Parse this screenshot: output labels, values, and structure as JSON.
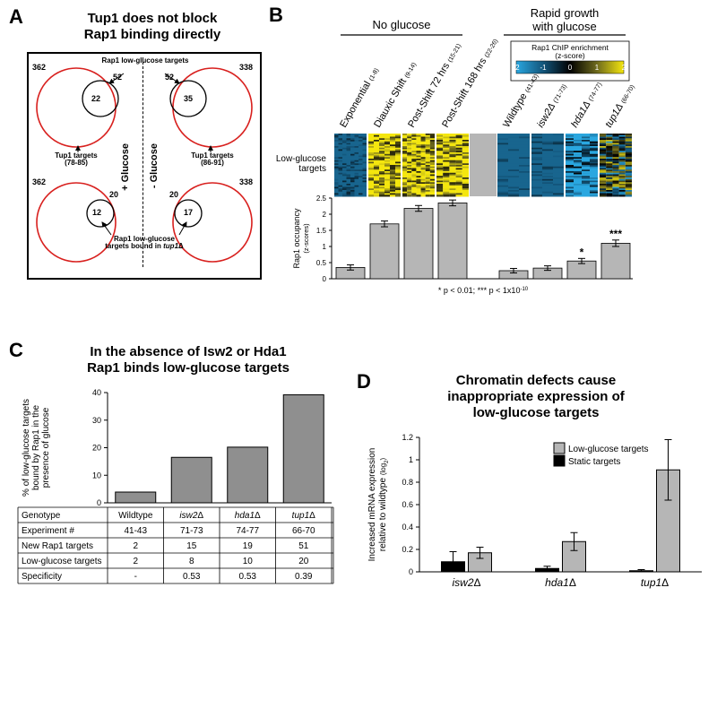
{
  "panelA": {
    "label": "A",
    "title_line1": "Tup1 does not block",
    "title_line2": "Rap1 binding directly",
    "glucose_plus": "+ Glucose",
    "glucose_minus": "- Glucose",
    "top_inner_label": "Rap1 low-glucose targets",
    "bottom_inner_label_line1": "Rap1 low-glucose",
    "bottom_inner_label_line2": "targets bound in tup1Δ",
    "tup1_label_line1": "Tup1 targets",
    "tup1_label_plus": "(78-85)",
    "tup1_label_minus": "(86-91)",
    "cells": {
      "top_left": {
        "big_outer": "362",
        "inner_total": "52",
        "overlap": "22"
      },
      "top_right": {
        "big_outer": "338",
        "inner_total": "52",
        "overlap": "35"
      },
      "bot_left": {
        "big_outer": "362",
        "inner_total": "20",
        "overlap": "12"
      },
      "bot_right": {
        "big_outer": "338",
        "inner_total": "20",
        "overlap": "17"
      }
    },
    "big_circle_color": "#d8201e",
    "small_circle_color": "#000000"
  },
  "panelB": {
    "label": "B",
    "header_no_glucose": "No glucose",
    "header_rapid": "Rapid growth",
    "header_rapid2": "with glucose",
    "columns": [
      {
        "name": "Exponential",
        "range": "(1-8)",
        "n": 8,
        "mean": 0.35,
        "err": 0.08
      },
      {
        "name": "Diauxic Shift",
        "range": "(9-14)",
        "n": 6,
        "mean": 1.7,
        "err": 0.09
      },
      {
        "name": "Post-Shift 72 hrs",
        "range": "(15-21)",
        "n": 7,
        "mean": 2.18,
        "err": 0.09
      },
      {
        "name": "Post-Shift 168 hrs",
        "range": "(22-26)",
        "n": 5,
        "mean": 2.35,
        "err": 0.09
      },
      {
        "name": "Wildtype",
        "range": "(41-43)",
        "n": 3,
        "mean": 0.25,
        "err": 0.07,
        "gap_before": true
      },
      {
        "name": "isw2Δ",
        "range": "(71-73)",
        "n": 3,
        "mean": 0.33,
        "err": 0.07,
        "italic": true
      },
      {
        "name": "hda1Δ",
        "range": "(74-77)",
        "n": 4,
        "mean": 0.55,
        "err": 0.08,
        "italic": true,
        "sig": "*"
      },
      {
        "name": "tup1Δ",
        "range": "(66-70)",
        "n": 5,
        "mean": 1.1,
        "err": 0.1,
        "italic": true,
        "sig": "***"
      }
    ],
    "heat_side_label": "Low-glucose\ntargets",
    "y_axis_label": "Rap1 occupancy\n(z-scores)",
    "y_ticks": [
      0,
      0.5,
      1.0,
      1.5,
      2.0,
      2.5
    ],
    "sig_note": "* p < 0.01; *** p < 1x10",
    "sig_note_sup": "-10",
    "legend_title": "Rap1 ChIP enrichment\n(z-score)",
    "legend_ticks": [
      "-2",
      "-1",
      "0",
      "1",
      "2"
    ],
    "gradient_colors": [
      "#2aa7e0",
      "#13557a",
      "#000000",
      "#6e6a1d",
      "#f4e60e"
    ],
    "bar_fill": "#b6b6b6",
    "bar_stroke": "#000000",
    "heat_bg": "#b6b6b6"
  },
  "panelC": {
    "label": "C",
    "title_line1": "In the absence of Isw2 or Hda1",
    "title_line2": "Rap1 binds low-glucose targets",
    "y_axis_label_line1": "% of low-glucose targets",
    "y_axis_label_line2": "bound by Rap1 in the",
    "y_axis_label_line3": "presence of glucose",
    "y_ticks": [
      0,
      10,
      20,
      30,
      40
    ],
    "bars": [
      {
        "name": "Wildtype",
        "value": 3.9
      },
      {
        "name": "isw2Δ",
        "value": 16.5,
        "italic": true
      },
      {
        "name": "hda1Δ",
        "value": 20.2,
        "italic": true
      },
      {
        "name": "tup1Δ",
        "value": 39.2,
        "italic": true
      }
    ],
    "table_rows": [
      {
        "label": "Genotype",
        "vals": [
          "Wildtype",
          "isw2Δ",
          "hda1Δ",
          "tup1Δ"
        ],
        "italic_cols": [
          1,
          2,
          3
        ]
      },
      {
        "label": "Experiment #",
        "vals": [
          "41-43",
          "71-73",
          "74-77",
          "66-70"
        ]
      },
      {
        "label": "New Rap1 targets",
        "vals": [
          "2",
          "15",
          "19",
          "51"
        ]
      },
      {
        "label": "Low-glucose targets",
        "vals": [
          "2",
          "8",
          "10",
          "20"
        ]
      },
      {
        "label": "Specificity",
        "vals": [
          "-",
          "0.53",
          "0.53",
          "0.39"
        ]
      }
    ],
    "bar_fill": "#8f8f8f",
    "bar_stroke": "#000000"
  },
  "panelD": {
    "label": "D",
    "title_line1": "Chromatin defects cause",
    "title_line2": "inappropriate expression of",
    "title_line3": "low-glucose targets",
    "y_axis_label_line1": "Increased mRNA expression",
    "y_axis_label_line2": "relative to wildtype (log₂)",
    "y_ticks": [
      0,
      0.2,
      0.4,
      0.6,
      0.8,
      1,
      1.2
    ],
    "legend_low": "Low-glucose targets",
    "legend_static": "Static targets",
    "groups": [
      {
        "name": "isw2Δ",
        "static": 0.09,
        "static_err": 0.09,
        "low": 0.17,
        "low_err": 0.05
      },
      {
        "name": "hda1Δ",
        "static": 0.03,
        "static_err": 0.02,
        "low": 0.27,
        "low_err": 0.08
      },
      {
        "name": "tup1Δ",
        "static": 0.01,
        "static_err": 0.01,
        "low": 0.91,
        "low_err": 0.27
      }
    ],
    "color_static": "#000000",
    "color_low": "#b6b6b6",
    "bar_stroke": "#000000"
  }
}
